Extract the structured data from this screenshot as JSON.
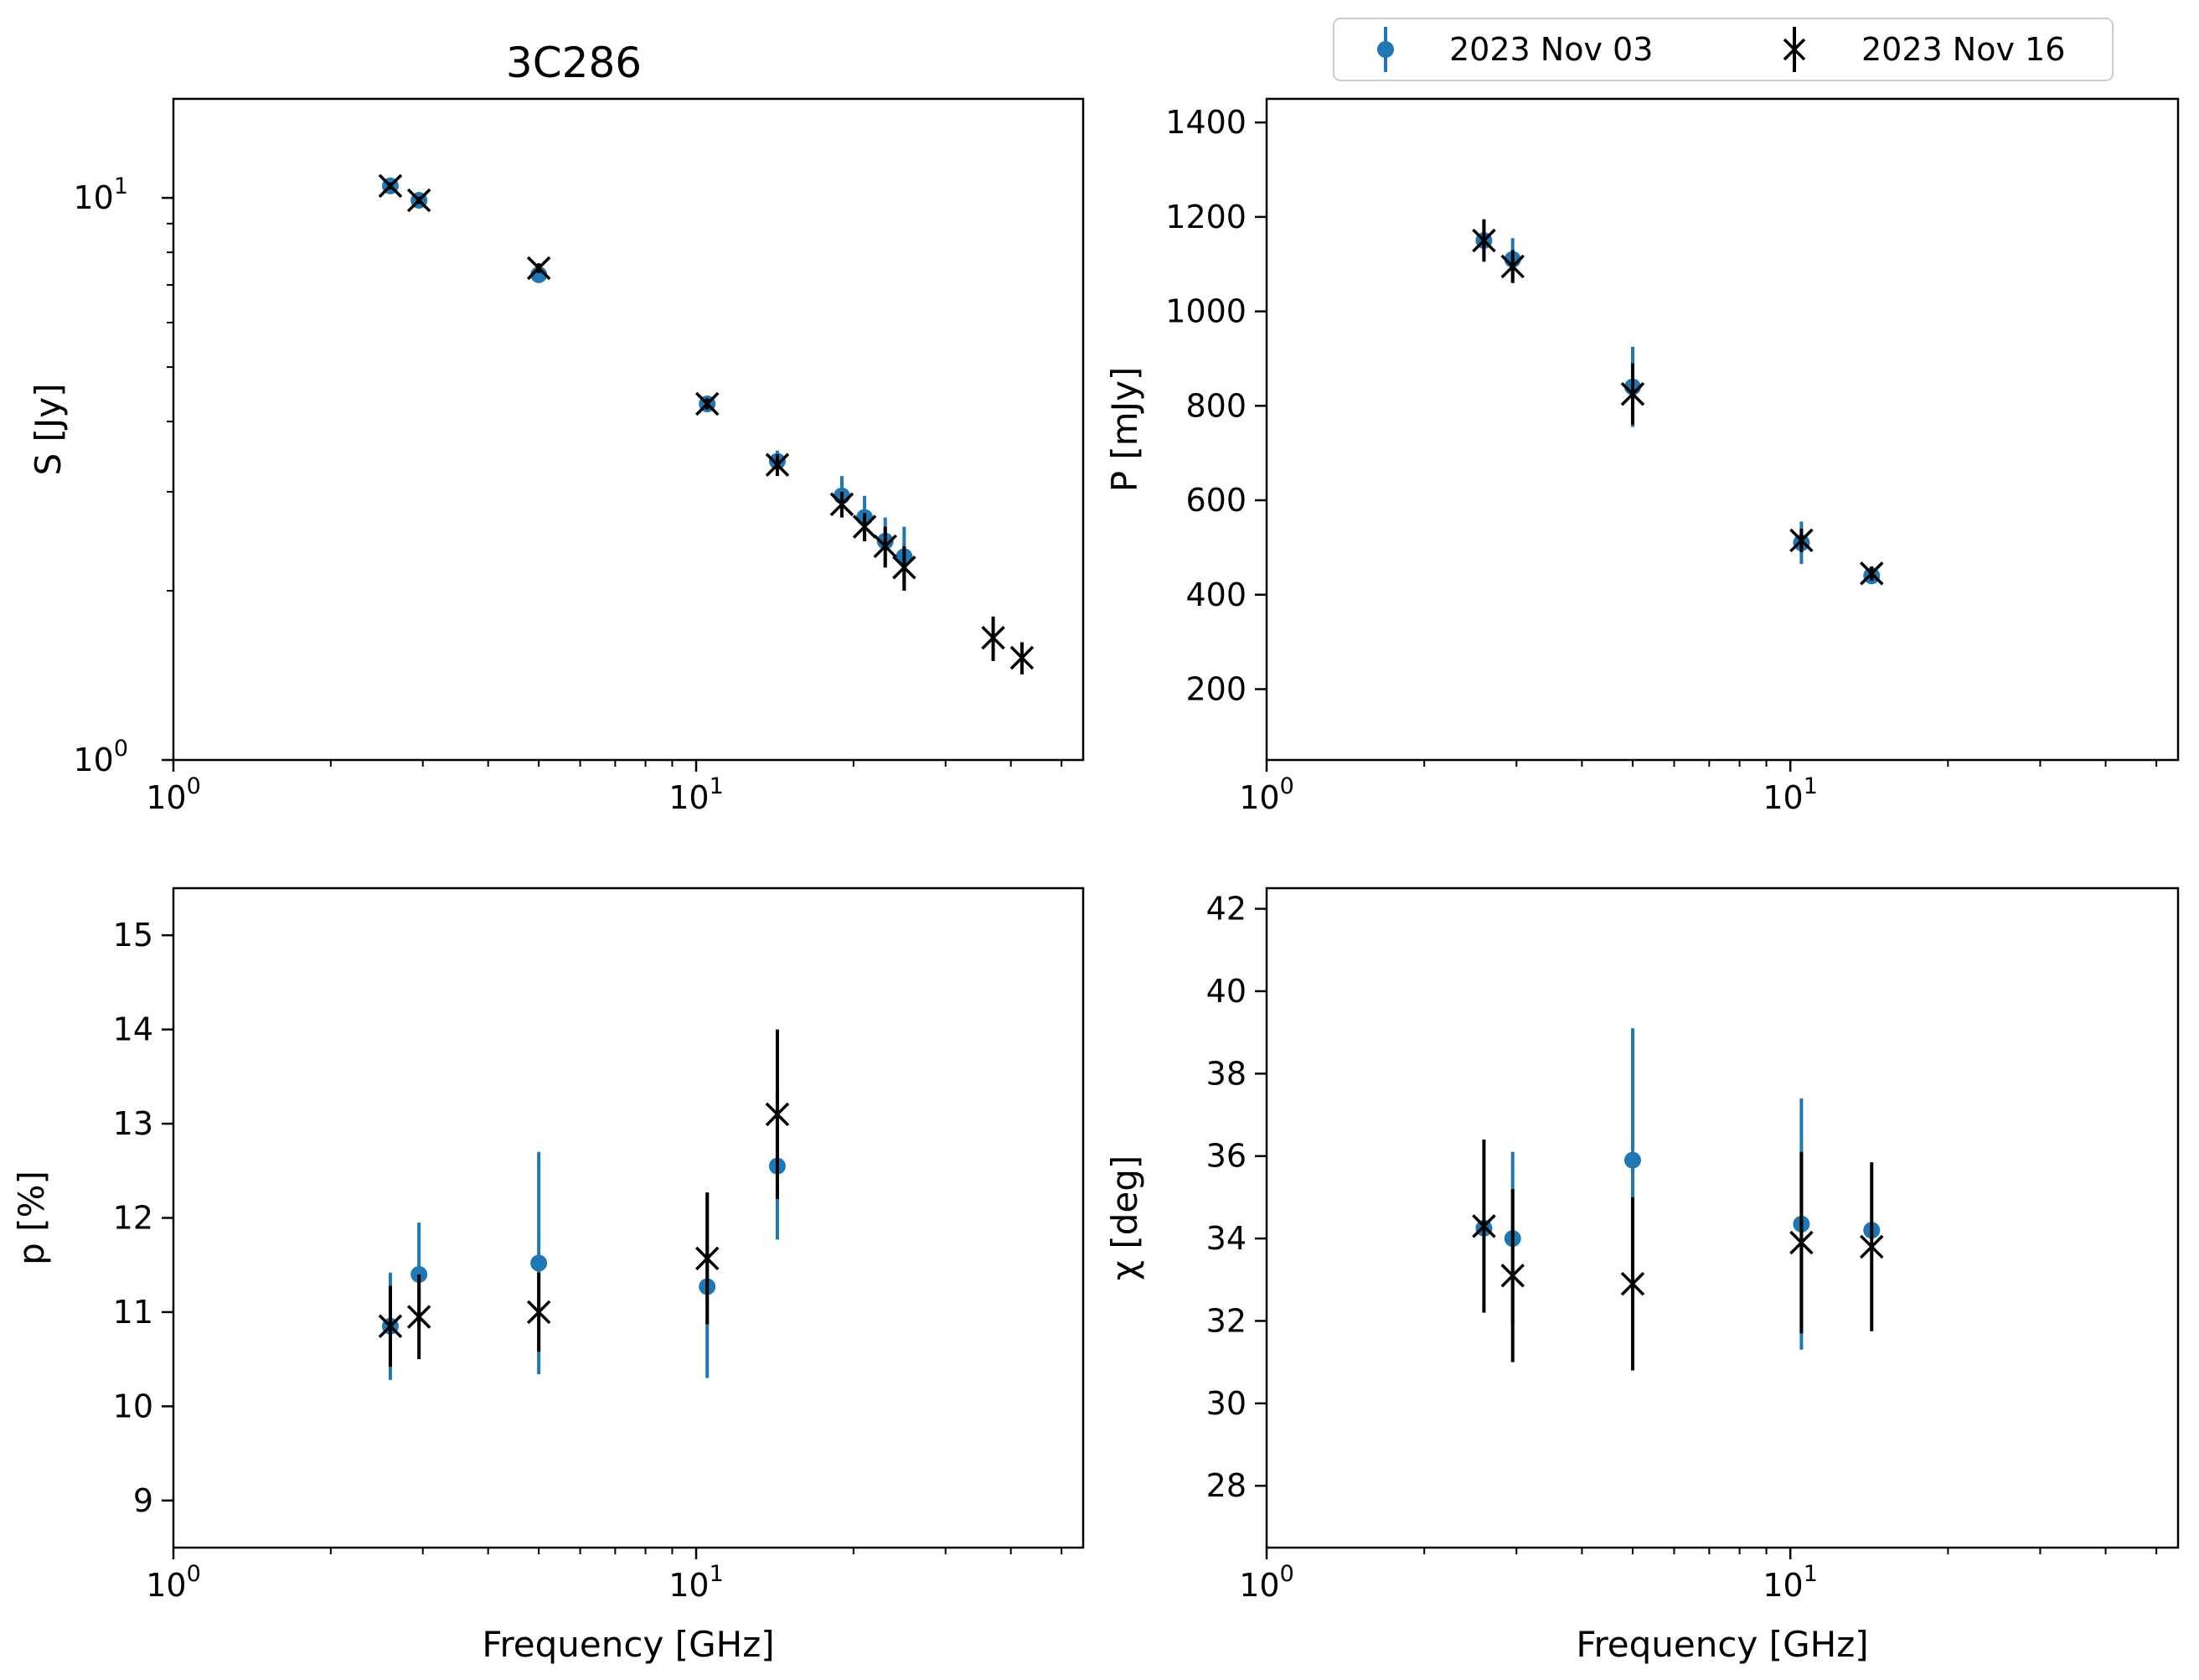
{
  "figure_title": "3C286",
  "legend": {
    "entries": [
      {
        "label": "2023 Nov 03",
        "color": "#1f77b4",
        "marker": "dot"
      },
      {
        "label": "2023 Nov 16",
        "color": "#000000",
        "marker": "x"
      }
    ]
  },
  "chart_data": [
    {
      "type": "scatter",
      "id": "flux",
      "title": "3C286",
      "xlabel": "",
      "ylabel": "S [Jy]",
      "xscale": "log",
      "yscale": "log",
      "xlim": [
        1,
        55
      ],
      "ylim": [
        1,
        15
      ],
      "xticks": [
        {
          "value": 1,
          "base": "10",
          "exp": "0"
        },
        {
          "value": 10,
          "base": "10",
          "exp": "1"
        }
      ],
      "yticks": [
        {
          "value": 1,
          "base": "10",
          "exp": "0"
        },
        {
          "value": 10,
          "base": "10",
          "exp": "1"
        }
      ],
      "series": [
        {
          "name": "2023 Nov 03",
          "color": "#1f77b4",
          "marker": "dot",
          "x": [
            2.6,
            2.95,
            5.0,
            10.5,
            14.3,
            19.0,
            21.0,
            23.0,
            25.0
          ],
          "y": [
            10.5,
            9.9,
            7.3,
            4.3,
            3.4,
            2.95,
            2.7,
            2.45,
            2.3
          ],
          "err": [
            0.2,
            0.2,
            0.15,
            0.1,
            0.15,
            0.25,
            0.25,
            0.25,
            0.3
          ]
        },
        {
          "name": "2023 Nov 16",
          "color": "#000000",
          "marker": "x",
          "x": [
            2.6,
            2.95,
            5.0,
            10.5,
            14.3,
            19.0,
            21.0,
            23.0,
            25.0,
            37.0,
            42.0
          ],
          "y": [
            10.5,
            9.9,
            7.5,
            4.3,
            3.35,
            2.85,
            2.6,
            2.4,
            2.2,
            1.65,
            1.52
          ],
          "err": [
            0.15,
            0.15,
            0.15,
            0.1,
            0.15,
            0.15,
            0.15,
            0.2,
            0.2,
            0.15,
            0.1
          ]
        }
      ]
    },
    {
      "type": "scatter",
      "id": "polflux",
      "title": "",
      "xlabel": "",
      "ylabel": "P [mJy]",
      "xscale": "log",
      "yscale": "linear",
      "xlim": [
        1,
        55
      ],
      "ylim": [
        50,
        1450
      ],
      "xticks": [
        {
          "value": 1,
          "base": "10",
          "exp": "0"
        },
        {
          "value": 10,
          "base": "10",
          "exp": "1"
        }
      ],
      "yticks": [
        {
          "value": 200,
          "label": "200"
        },
        {
          "value": 400,
          "label": "400"
        },
        {
          "value": 600,
          "label": "600"
        },
        {
          "value": 800,
          "label": "800"
        },
        {
          "value": 1000,
          "label": "1000"
        },
        {
          "value": 1200,
          "label": "1200"
        },
        {
          "value": 1400,
          "label": "1400"
        }
      ],
      "series": [
        {
          "name": "2023 Nov 03",
          "color": "#1f77b4",
          "marker": "dot",
          "x": [
            2.6,
            2.95,
            5.0,
            10.5,
            14.3
          ],
          "y": [
            1150,
            1110,
            840,
            510,
            440
          ],
          "err": [
            40,
            45,
            85,
            45,
            15
          ]
        },
        {
          "name": "2023 Nov 16",
          "color": "#000000",
          "marker": "x",
          "x": [
            2.6,
            2.95,
            5.0,
            10.5,
            14.3
          ],
          "y": [
            1150,
            1095,
            825,
            515,
            445
          ],
          "err": [
            45,
            35,
            65,
            25,
            15
          ]
        }
      ]
    },
    {
      "type": "scatter",
      "id": "polfrac",
      "title": "",
      "xlabel": "Frequency [GHz]",
      "ylabel": "p [%]",
      "xscale": "log",
      "yscale": "linear",
      "xlim": [
        1,
        55
      ],
      "ylim": [
        8.5,
        15.5
      ],
      "xticks": [
        {
          "value": 1,
          "base": "10",
          "exp": "0"
        },
        {
          "value": 10,
          "base": "10",
          "exp": "1"
        }
      ],
      "yticks": [
        {
          "value": 9,
          "label": "9"
        },
        {
          "value": 10,
          "label": "10"
        },
        {
          "value": 11,
          "label": "11"
        },
        {
          "value": 12,
          "label": "12"
        },
        {
          "value": 13,
          "label": "13"
        },
        {
          "value": 14,
          "label": "14"
        },
        {
          "value": 15,
          "label": "15"
        }
      ],
      "series": [
        {
          "name": "2023 Nov 03",
          "color": "#1f77b4",
          "marker": "dot",
          "x": [
            2.6,
            2.95,
            5.0,
            10.5,
            14.3
          ],
          "y": [
            10.85,
            11.4,
            11.52,
            11.27,
            12.55
          ],
          "err": [
            0.57,
            0.55,
            1.18,
            0.97,
            0.78
          ]
        },
        {
          "name": "2023 Nov 16",
          "color": "#000000",
          "marker": "x",
          "x": [
            2.6,
            2.95,
            5.0,
            10.5,
            14.3
          ],
          "y": [
            10.85,
            10.95,
            11.0,
            11.57,
            13.1
          ],
          "err": [
            0.43,
            0.45,
            0.42,
            0.7,
            0.9
          ]
        }
      ]
    },
    {
      "type": "scatter",
      "id": "evpa",
      "title": "",
      "xlabel": "Frequency [GHz]",
      "ylabel": "χ [deg]",
      "xscale": "log",
      "yscale": "linear",
      "xlim": [
        1,
        55
      ],
      "ylim": [
        26.5,
        42.5
      ],
      "xticks": [
        {
          "value": 1,
          "base": "10",
          "exp": "0"
        },
        {
          "value": 10,
          "base": "10",
          "exp": "1"
        }
      ],
      "yticks": [
        {
          "value": 28,
          "label": "28"
        },
        {
          "value": 30,
          "label": "30"
        },
        {
          "value": 32,
          "label": "32"
        },
        {
          "value": 34,
          "label": "34"
        },
        {
          "value": 36,
          "label": "36"
        },
        {
          "value": 38,
          "label": "38"
        },
        {
          "value": 40,
          "label": "40"
        },
        {
          "value": 42,
          "label": "42"
        }
      ],
      "series": [
        {
          "name": "2023 Nov 03",
          "color": "#1f77b4",
          "marker": "dot",
          "x": [
            2.6,
            2.95,
            5.0,
            10.5,
            14.3
          ],
          "y": [
            34.25,
            34.0,
            35.9,
            34.35,
            34.2
          ],
          "err": [
            0.2,
            2.1,
            3.2,
            3.05,
            0.2
          ]
        },
        {
          "name": "2023 Nov 16",
          "color": "#000000",
          "marker": "x",
          "x": [
            2.6,
            2.95,
            5.0,
            10.5,
            14.3
          ],
          "y": [
            34.3,
            33.1,
            32.9,
            33.9,
            33.8
          ],
          "err": [
            2.1,
            2.1,
            2.1,
            2.2,
            2.05
          ]
        }
      ]
    }
  ]
}
